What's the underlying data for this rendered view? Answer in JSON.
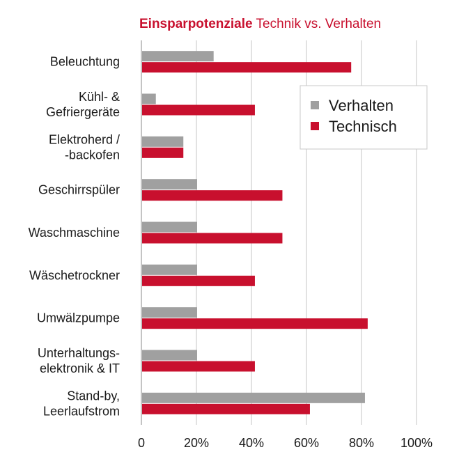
{
  "chart_data": {
    "type": "bar",
    "orientation": "horizontal",
    "title_bold": "Einsparpotenziale",
    "title_rest": "Technik vs. Verhalten",
    "categories": [
      [
        "Beleuchtung"
      ],
      [
        "Kühl- &",
        "Gefriergeräte"
      ],
      [
        "Elektroherd /",
        "-backofen"
      ],
      [
        "Geschirrspüler"
      ],
      [
        "Waschmaschine"
      ],
      [
        "Wäschetrockner"
      ],
      [
        "Umwälzpumpe"
      ],
      [
        "Unterhaltungs-",
        "elektronik & IT"
      ],
      [
        "Stand-by,",
        "Leerlaufstrom"
      ]
    ],
    "series": [
      {
        "name": "Verhalten",
        "color": "#a0a0a0",
        "values": [
          26,
          5,
          15,
          20,
          20,
          20,
          20,
          20,
          81
        ]
      },
      {
        "name": "Technisch",
        "color": "#c8102e",
        "values": [
          76,
          41,
          15,
          51,
          51,
          41,
          82,
          41,
          61
        ]
      }
    ],
    "xlim": [
      0,
      100
    ],
    "xticks": [
      "0",
      "20%",
      "40%",
      "60%",
      "80%",
      "100%"
    ],
    "grid": true,
    "legend_position": "top-right"
  }
}
